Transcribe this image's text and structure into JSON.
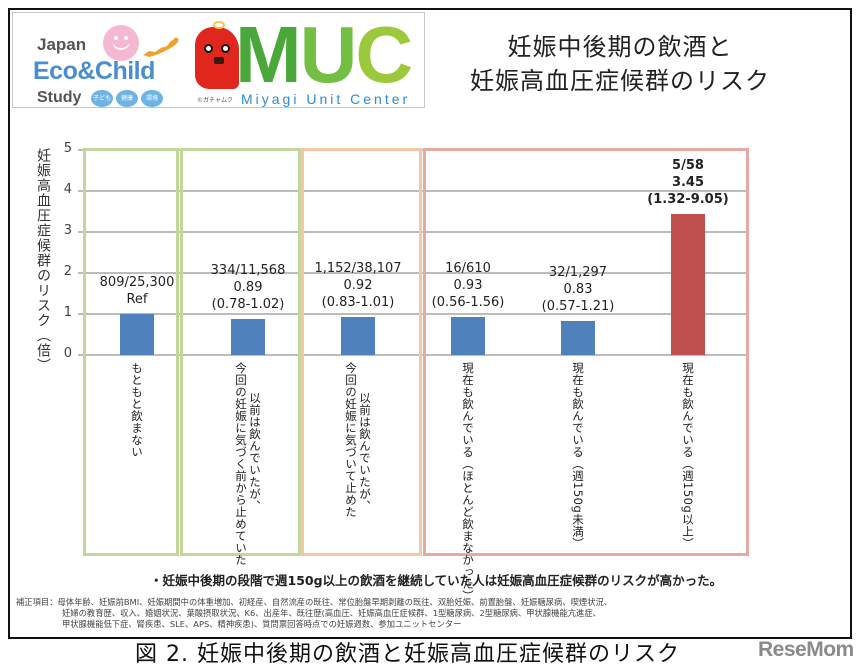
{
  "logo": {
    "jecs": {
      "line1": "Japan",
      "line2": "Eco&Child",
      "line3": "Study",
      "pills": [
        "子ども",
        "健康",
        "環境"
      ]
    },
    "muc": {
      "letters": [
        "M",
        "U",
        "C"
      ],
      "subtitle": "Miyagi Unit Center",
      "copyright": "©ガチャムク"
    }
  },
  "header": {
    "title_line1": "妊娠中後期の飲酒と",
    "title_line2": "妊娠高血圧症候群のリスク"
  },
  "chart_data": {
    "type": "bar",
    "title": "妊娠中後期の飲酒と妊娠高血圧症候群のリスク",
    "ylabel": "妊娠高血圧症候群のリスク（倍）",
    "xlabel": "",
    "ylim": [
      0,
      5
    ],
    "yticks": [
      0,
      1,
      2,
      3,
      4,
      5
    ],
    "grid": true,
    "legend": null,
    "categories": [
      "もともと飲まない",
      "以前は飲んでいたが、今回の妊娠に気づく前から止めていた",
      "以前は飲んでいたが、今回の妊娠に気づいて止めた",
      "現在も飲んでいる（ほとんど飲まなかった）",
      "現在も飲んでいる（週150g未満）",
      "現在も飲んでいる（週150g以上）"
    ],
    "values": [
      1.0,
      0.89,
      0.92,
      0.93,
      0.83,
      3.45
    ],
    "bars": [
      {
        "cases": "809/25,300",
        "or": "Ref",
        "ci": "",
        "value": 1.0,
        "color": "#4f81bd",
        "bold": false,
        "cat_lines": [
          "もともと飲まない"
        ]
      },
      {
        "cases": "334/11,568",
        "or": "0.89",
        "ci": "(0.78-1.02)",
        "value": 0.89,
        "color": "#4f81bd",
        "bold": false,
        "cat_lines": [
          "以前は飲んでいたが、",
          "今回の妊娠に気づく前から止めていた"
        ]
      },
      {
        "cases": "1,152/38,107",
        "or": "0.92",
        "ci": "(0.83-1.01)",
        "value": 0.92,
        "color": "#4f81bd",
        "bold": false,
        "cat_lines": [
          "以前は飲んでいたが、",
          "今回の妊娠に気づいて止めた"
        ]
      },
      {
        "cases": "16/610",
        "or": "0.93",
        "ci": "(0.56-1.56)",
        "value": 0.93,
        "color": "#4f81bd",
        "bold": false,
        "cat_lines": [
          "現在も飲んでいる（ほとんど飲まなかった）"
        ]
      },
      {
        "cases": "32/1,297",
        "or": "0.83",
        "ci": "(0.57-1.21)",
        "value": 0.83,
        "color": "#4f81bd",
        "bold": false,
        "cat_lines": [
          "現在も飲んでいる（週150g未満）"
        ]
      },
      {
        "cases": "5/58",
        "or": "3.45",
        "ci": "(1.32-9.05)",
        "value": 3.45,
        "color": "#c0504d",
        "bold": true,
        "cat_lines": [
          "現在も飲んでいる（週150g以上）"
        ]
      }
    ],
    "group_boxes": [
      {
        "label": "never",
        "color": "#c3d69b"
      },
      {
        "label": "quit-before",
        "color": "#c3d69b"
      },
      {
        "label": "quit-after",
        "color": "#f2c8a8"
      },
      {
        "label": "current",
        "color": "#e6a9a4"
      }
    ]
  },
  "finding": "・妊娠中後期の段階で週150g以上の飲酒を継続していた人は妊娠高血圧症候群のリスクが高かった。",
  "note": {
    "line1": "補正項目：母体年齢、妊娠前BMI、妊娠期間中の体重増加、初経産、自然流産の既往、常位胎盤早期剥離の既往、双胎妊娠、前置胎盤、妊娠糖尿病、喫煙状況、",
    "line2": "妊婦の教育歴、収入、婚姻状況、葉酸摂取状況、K6、出産年、既往歴(高血圧、妊娠高血圧症候群、1型糖尿病、2型糖尿病、甲状腺機能亢進症、",
    "line3": "甲状腺機能低下症、腎疾患、SLE、APS、精神疾患)、質問票回答時点での妊娠週数、参加ユニットセンター"
  },
  "caption": "図 2.  妊娠中後期の飲酒と妊娠高血圧症候群のリスク",
  "watermark": "ReseMom"
}
